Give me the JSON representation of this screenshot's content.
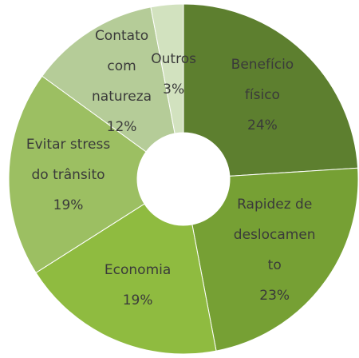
{
  "chart_data": {
    "type": "donut",
    "categories": [
      "Benefício físico",
      "Rapidez de deslocamento",
      "Economia",
      "Evitar stress do trânsito",
      "Contato com natureza",
      "Outros"
    ],
    "values": [
      24,
      23,
      19,
      19,
      12,
      3
    ],
    "value_labels": [
      "24%",
      "23%",
      "19%",
      "19%",
      "12%",
      "3%"
    ],
    "colors": [
      "#5d7f2f",
      "#76a034",
      "#8fbb40",
      "#9cbf62",
      "#b5cc98",
      "#d2e2bf"
    ]
  }
}
